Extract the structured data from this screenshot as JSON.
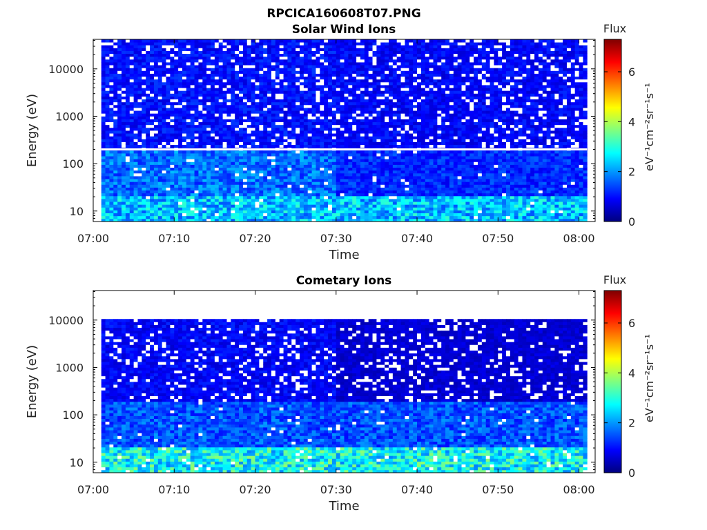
{
  "figure_title": "RPCICA160608T07.PNG",
  "colors": {
    "colormap": [
      "#00007f",
      "#0000ff",
      "#007fff",
      "#00ffff",
      "#7fff7f",
      "#ffff00",
      "#ff7f00",
      "#ff0000",
      "#7f0000"
    ],
    "no_data": "#ffffff"
  },
  "chart_data": [
    {
      "type": "heatmap",
      "title": "Solar Wind Ions",
      "xlabel": "Time",
      "ylabel": "Energy (eV)",
      "y_scale": "log",
      "xlim": [
        "07:00",
        "08:02"
      ],
      "ylim": [
        6,
        42000
      ],
      "x_ticks": [
        "07:00",
        "07:10",
        "07:20",
        "07:30",
        "07:40",
        "07:50",
        "08:00"
      ],
      "y_ticks": [
        "10",
        "100",
        "1000",
        "10000"
      ],
      "data_time_range": [
        "07:01",
        "08:01"
      ],
      "gap_energy_eV": 200,
      "colorbar": {
        "label": "eV⁻¹cm⁻²sr⁻¹s⁻¹",
        "title": "Flux",
        "range": [
          0,
          7.3
        ],
        "ticks": [
          "0",
          "2",
          "4",
          "6"
        ]
      },
      "flux_bands": [
        {
          "energy_range": [
            6,
            20
          ],
          "time_range": [
            "07:01",
            "08:01"
          ],
          "typical_flux": 2.3
        },
        {
          "energy_range": [
            20,
            200
          ],
          "time_range": [
            "07:01",
            "07:30"
          ],
          "typical_flux": 1.7
        },
        {
          "energy_range": [
            20,
            200
          ],
          "time_range": [
            "07:30",
            "08:01"
          ],
          "typical_flux": 1.2
        },
        {
          "energy_range": [
            200,
            42000
          ],
          "time_range": [
            "07:01",
            "07:30"
          ],
          "typical_flux": 1.0
        },
        {
          "energy_range": [
            200,
            42000
          ],
          "time_range": [
            "07:30",
            "08:01"
          ],
          "typical_flux": 0.9
        }
      ]
    },
    {
      "type": "heatmap",
      "title": "Cometary Ions",
      "xlabel": "Time",
      "ylabel": "Energy (eV)",
      "y_scale": "log",
      "xlim": [
        "07:00",
        "08:02"
      ],
      "ylim": [
        6,
        42000
      ],
      "x_ticks": [
        "07:00",
        "07:10",
        "07:20",
        "07:30",
        "07:40",
        "07:50",
        "08:00"
      ],
      "y_ticks": [
        "10",
        "100",
        "1000",
        "10000"
      ],
      "data_time_range": [
        "07:01",
        "08:01"
      ],
      "upper_energy_cutoff_eV": 11000,
      "colorbar": {
        "label": "eV⁻¹cm⁻²sr⁻¹s⁻¹",
        "title": "Flux",
        "range": [
          0,
          7.3
        ],
        "ticks": [
          "0",
          "2",
          "4",
          "6"
        ]
      },
      "flux_bands": [
        {
          "energy_range": [
            6,
            20
          ],
          "time_range": [
            "07:01",
            "08:01"
          ],
          "typical_flux": 2.8
        },
        {
          "energy_range": [
            20,
            200
          ],
          "time_range": [
            "07:01",
            "08:01"
          ],
          "typical_flux": 1.5
        },
        {
          "energy_range": [
            200,
            11000
          ],
          "time_range": [
            "07:01",
            "07:30"
          ],
          "typical_flux": 0.9
        },
        {
          "energy_range": [
            200,
            11000
          ],
          "time_range": [
            "07:30",
            "08:01"
          ],
          "typical_flux": 0.6
        }
      ]
    }
  ]
}
